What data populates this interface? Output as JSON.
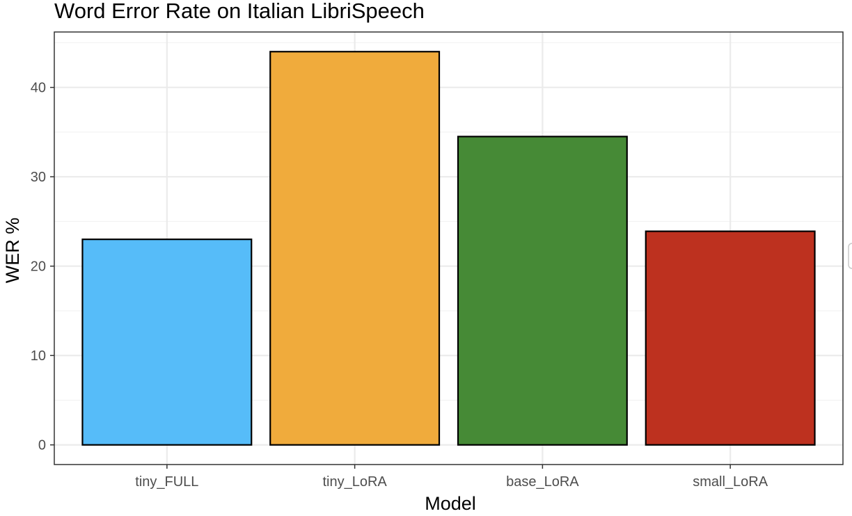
{
  "chart_data": {
    "type": "bar",
    "title": "Word Error Rate on Italian LibriSpeech",
    "xlabel": "Model",
    "ylabel": "WER %",
    "categories": [
      "tiny_FULL",
      "tiny_LoRA",
      "base_LoRA",
      "small_LoRA"
    ],
    "values": [
      23.0,
      44.0,
      34.5,
      23.9
    ],
    "colors": [
      "#56BCF9",
      "#F0AB3C",
      "#468A36",
      "#BD311F"
    ],
    "yticks": [
      0,
      10,
      20,
      30,
      40
    ],
    "ylim": [
      -2.2,
      46.2
    ],
    "grid": true,
    "legend": "none"
  }
}
